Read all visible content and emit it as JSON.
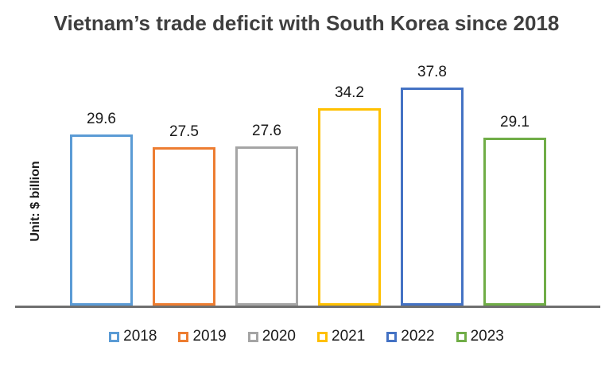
{
  "chart_data": {
    "type": "bar",
    "title": "Vietnam’s trade deficit with South Korea since 2018",
    "ylabel": "Unit: $ billion",
    "xlabel": "",
    "categories": [
      "2018",
      "2019",
      "2020",
      "2021",
      "2022",
      "2023"
    ],
    "values": [
      29.6,
      27.5,
      27.6,
      34.2,
      37.8,
      29.1
    ],
    "data_labels": [
      "29.6",
      "27.5",
      "27.6",
      "34.2",
      "37.8",
      "29.1"
    ],
    "ylim": [
      0,
      41
    ],
    "grid": false,
    "bar_fill": "hollow",
    "legend_position": "bottom",
    "series_colors": [
      "#5B9BD5",
      "#ED7D31",
      "#A5A5A5",
      "#FFC000",
      "#4472C4",
      "#70AD47"
    ],
    "axis_line_color": "#6f6f6f",
    "title_color": "#3f3f3f"
  }
}
